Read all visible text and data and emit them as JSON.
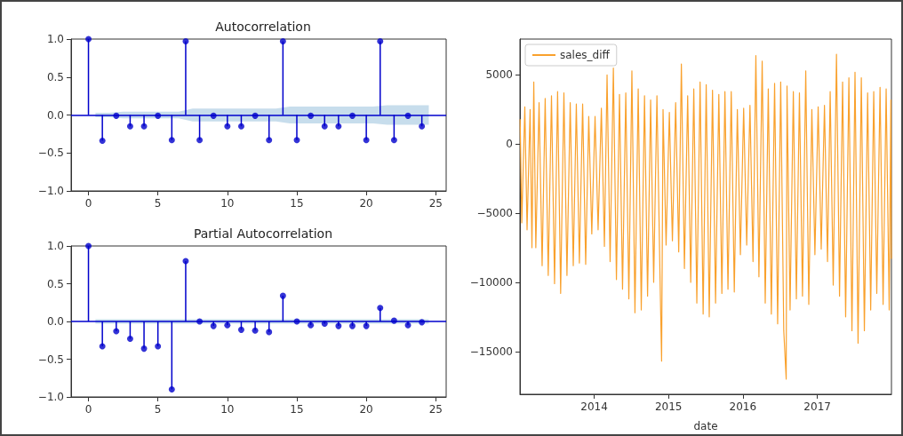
{
  "chart_data": [
    {
      "type": "lollipop",
      "title": "Autocorrelation",
      "x": [
        0,
        1,
        2,
        3,
        4,
        5,
        6,
        7,
        8,
        9,
        10,
        11,
        12,
        13,
        14,
        15,
        16,
        17,
        18,
        19,
        20,
        21,
        22,
        23,
        24
      ],
      "xlim": [
        -1.25,
        25.75
      ],
      "xticks": [
        0,
        5,
        10,
        15,
        20,
        25
      ],
      "ylim": [
        -1,
        1
      ],
      "yticks": [
        {
          "value": -1,
          "label": "−1.0"
        },
        {
          "value": -0.5,
          "label": "−0.5"
        },
        {
          "value": 0,
          "label": "0.0"
        },
        {
          "value": 0.5,
          "label": "0.5"
        },
        {
          "value": 1,
          "label": "1.0"
        }
      ],
      "grid": false,
      "legend": false,
      "marker": "circle",
      "series": [
        {
          "color": "#0000cc",
          "values": [
            1,
            -0.34,
            -0.01,
            -0.15,
            -0.15,
            -0.01,
            -0.33,
            0.97,
            -0.33,
            -0.01,
            -0.15,
            -0.15,
            -0.01,
            -0.33,
            0.97,
            -0.33,
            -0.01,
            -0.15,
            -0.15,
            -0.01,
            -0.33,
            0.97,
            -0.33,
            -0.01,
            -0.15
          ]
        },
        {
          "type": "line",
          "color": "#1f77b4",
          "x": [
            0.5,
            1.5,
            2.5,
            6.5,
            7.5,
            13.5,
            14.5,
            20.5,
            21.5,
            24.5
          ],
          "values": [
            null,
            null,
            null,
            null,
            null,
            null,
            null,
            null,
            null,
            null
          ],
          "lower": [
            -0.03,
            -0.03,
            -0.045,
            -0.045,
            -0.085,
            -0.085,
            -0.11,
            -0.11,
            -0.13,
            -0.13
          ],
          "upper": [
            0.03,
            0.03,
            0.045,
            0.045,
            0.085,
            0.085,
            0.11,
            0.11,
            0.13,
            0.13
          ]
        }
      ],
      "ref_lines": [
        {
          "axis": "y",
          "value": 0,
          "color": "#0000cc"
        }
      ]
    },
    {
      "type": "lollipop",
      "title": "Partial Autocorrelation",
      "x": [
        0,
        1,
        2,
        3,
        4,
        5,
        6,
        7,
        8,
        9,
        10,
        11,
        12,
        13,
        14,
        15,
        16,
        17,
        18,
        19,
        20,
        21,
        22,
        23,
        24
      ],
      "xlim": [
        -1.25,
        25.75
      ],
      "xticks": [
        0,
        5,
        10,
        15,
        20,
        25
      ],
      "ylim": [
        -1,
        1
      ],
      "yticks": [
        {
          "value": -1,
          "label": "−1.0"
        },
        {
          "value": -0.5,
          "label": "−0.5"
        },
        {
          "value": 0,
          "label": "0.0"
        },
        {
          "value": 0.5,
          "label": "0.5"
        },
        {
          "value": 1,
          "label": "1.0"
        }
      ],
      "grid": false,
      "legend": false,
      "marker": "circle",
      "series": [
        {
          "color": "#0000cc",
          "values": [
            1,
            -0.33,
            -0.13,
            -0.23,
            -0.36,
            -0.33,
            -0.9,
            0.8,
            0,
            -0.06,
            -0.05,
            -0.11,
            -0.12,
            -0.14,
            0.34,
            0,
            -0.05,
            -0.03,
            -0.06,
            -0.06,
            -0.06,
            0.18,
            0.01,
            -0.05,
            -0.01
          ]
        },
        {
          "type": "line",
          "color": "#1f77b4",
          "x": [
            0.5,
            24.5
          ],
          "values": [
            null,
            null
          ],
          "lower": [
            -0.03,
            -0.03
          ],
          "upper": [
            0.03,
            0.03
          ]
        }
      ],
      "ref_lines": [
        {
          "axis": "y",
          "value": 0,
          "color": "#0000cc"
        }
      ]
    },
    {
      "type": "line",
      "xlabel": "date",
      "xlim": [
        "2013-01-01",
        "2017-12-31"
      ],
      "xticks": [
        "2014",
        "2015",
        "2016",
        "2017"
      ],
      "ylim": [
        -18100,
        7600
      ],
      "yticks": [
        {
          "value": -15000,
          "label": "−15000"
        },
        {
          "value": -10000,
          "label": "−10000"
        },
        {
          "value": -5000,
          "label": "−5000"
        },
        0,
        5000
      ],
      "grid": false,
      "legend": "top left",
      "x": [
        "2013-01-02",
        "2013-01-10",
        "2013-01-25",
        "2013-02-05",
        "2013-02-20",
        "2013-03-01",
        "2013-03-10",
        "2013-03-20",
        "2013-04-05",
        "2013-04-20",
        "2013-05-05",
        "2013-05-20",
        "2013-06-05",
        "2013-06-20",
        "2013-07-05",
        "2013-07-20",
        "2013-08-05",
        "2013-08-20",
        "2013-09-05",
        "2013-09-20",
        "2013-10-05",
        "2013-10-20",
        "2013-11-05",
        "2013-11-20",
        "2013-12-05",
        "2013-12-20",
        "2014-01-05",
        "2014-01-20",
        "2014-02-05",
        "2014-02-20",
        "2014-03-05",
        "2014-03-20",
        "2014-04-05",
        "2014-04-20",
        "2014-05-05",
        "2014-05-20",
        "2014-06-05",
        "2014-06-20",
        "2014-07-05",
        "2014-07-20",
        "2014-08-05",
        "2014-08-20",
        "2014-09-05",
        "2014-09-20",
        "2014-10-05",
        "2014-10-20",
        "2014-11-05",
        "2014-11-20",
        "2014-11-28",
        "2014-12-05",
        "2014-12-20",
        "2015-01-05",
        "2015-01-20",
        "2015-02-05",
        "2015-02-20",
        "2015-03-05",
        "2015-03-20",
        "2015-04-05",
        "2015-04-20",
        "2015-05-05",
        "2015-05-20",
        "2015-06-05",
        "2015-06-20",
        "2015-07-05",
        "2015-07-20",
        "2015-08-05",
        "2015-08-20",
        "2015-09-05",
        "2015-09-20",
        "2015-10-05",
        "2015-10-20",
        "2015-11-05",
        "2015-11-20",
        "2015-12-05",
        "2015-12-20",
        "2016-01-05",
        "2016-01-20",
        "2016-02-05",
        "2016-02-20",
        "2016-03-05",
        "2016-03-20",
        "2016-04-05",
        "2016-04-20",
        "2016-05-05",
        "2016-05-20",
        "2016-06-05",
        "2016-06-20",
        "2016-07-05",
        "2016-07-20",
        "2016-08-01",
        "2016-08-05",
        "2016-08-20",
        "2016-09-05",
        "2016-09-20",
        "2016-10-05",
        "2016-10-20",
        "2016-11-05",
        "2016-11-20",
        "2016-12-05",
        "2016-12-20",
        "2017-01-05",
        "2017-01-20",
        "2017-02-05",
        "2017-02-20",
        "2017-03-05",
        "2017-03-20",
        "2017-04-05",
        "2017-04-20",
        "2017-05-05",
        "2017-05-20",
        "2017-06-05",
        "2017-06-20",
        "2017-07-05",
        "2017-07-20",
        "2017-08-05",
        "2017-08-20",
        "2017-09-05",
        "2017-09-20",
        "2017-10-05",
        "2017-10-20",
        "2017-11-05",
        "2017-11-20",
        "2017-12-05",
        "2017-12-20",
        "2017-12-28",
        "2017-12-31"
      ],
      "series": [
        {
          "name": "sales_diff",
          "color": "#f9a12d",
          "values": [
            1800,
            -5700,
            2700,
            -6200,
            2500,
            -7500,
            4500,
            -7500,
            3000,
            -8800,
            3300,
            -9500,
            3500,
            -10100,
            3800,
            -10800,
            3700,
            -9500,
            3000,
            -8800,
            2900,
            -8600,
            2900,
            -8700,
            2000,
            -6500,
            2000,
            -6200,
            2600,
            -7400,
            5000,
            -8500,
            5500,
            -9800,
            3600,
            -10500,
            3700,
            -11200,
            5300,
            -12200,
            4000,
            -12000,
            3500,
            -11000,
            3200,
            -10000,
            3500,
            -9500,
            -15700,
            2500,
            -7300,
            2300,
            -7000,
            3000,
            -7800,
            5800,
            -9000,
            3500,
            -10000,
            4000,
            -11500,
            4500,
            -12300,
            4300,
            -12500,
            3900,
            -11500,
            3600,
            -10800,
            3800,
            -10500,
            3800,
            -10700,
            2500,
            -8000,
            2600,
            -7300,
            2800,
            -8500,
            6400,
            -9600,
            6000,
            -11500,
            4000,
            -12300,
            4400,
            -13000,
            4500,
            -13500,
            -17000,
            4200,
            -12000,
            3800,
            -11200,
            3700,
            -11000,
            5300,
            -11600,
            2500,
            -8000,
            2700,
            -7600,
            2800,
            -8500,
            3800,
            -10200,
            6500,
            -11000,
            4500,
            -12500,
            4800,
            -13500,
            5200,
            -14400,
            4800,
            -13500,
            3700,
            -12000,
            3800,
            -10800,
            4100,
            -11600,
            4000,
            -12000,
            3200,
            -8300
          ]
        }
      ]
    }
  ]
}
